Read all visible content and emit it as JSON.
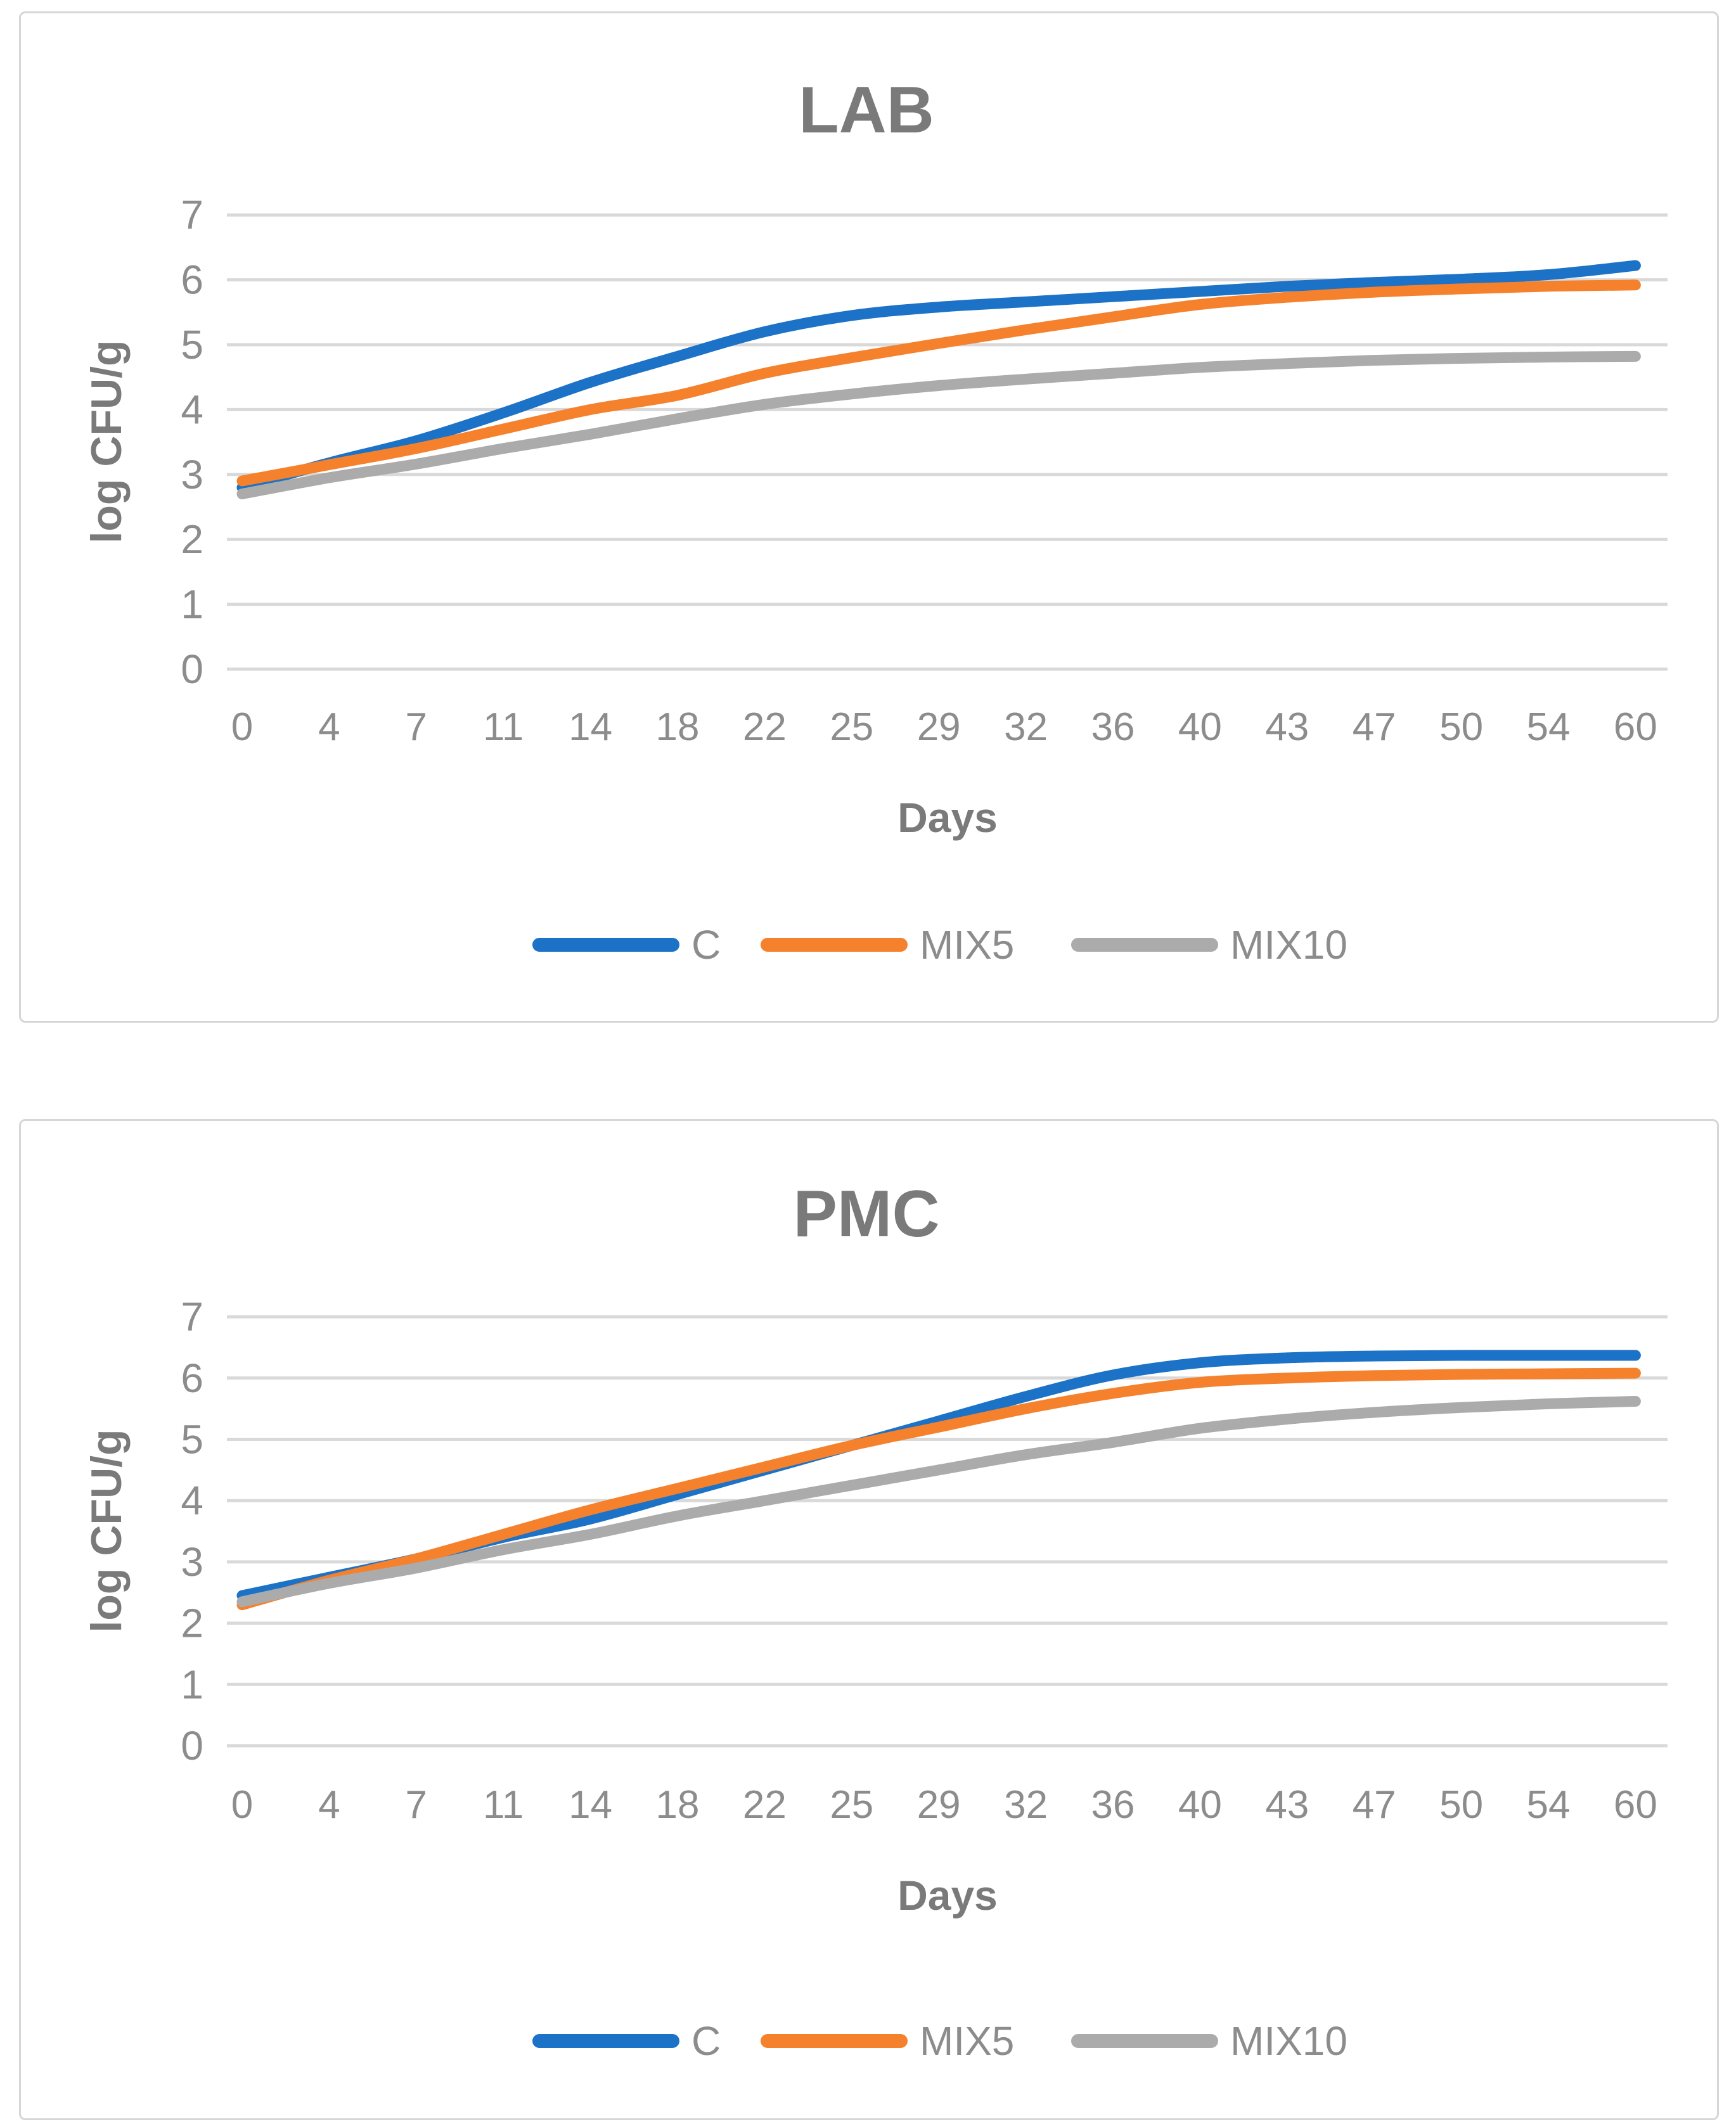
{
  "colors": {
    "series_blue": "#1b72c6",
    "series_orange": "#f5812d",
    "series_gray": "#ababab",
    "gridline": "#d9d9d9",
    "tick_text": "#8c8c8c",
    "title_text": "#7a7a7a"
  },
  "chart_data": [
    {
      "type": "line",
      "title": "LAB",
      "xlabel": "Days",
      "ylabel": "log CFU/g",
      "ylim": [
        0,
        7
      ],
      "yticks": [
        0,
        1,
        2,
        3,
        4,
        5,
        6,
        7
      ],
      "grid": true,
      "legend_position": "bottom",
      "line_style": "smooth",
      "categories": [
        "0",
        "4",
        "7",
        "11",
        "14",
        "18",
        "22",
        "25",
        "29",
        "32",
        "36",
        "40",
        "43",
        "47",
        "50",
        "54",
        "60"
      ],
      "series": [
        {
          "name": "C",
          "color": "#1b72c6",
          "values": [
            2.8,
            3.18,
            3.52,
            3.95,
            4.42,
            4.82,
            5.2,
            5.45,
            5.58,
            5.66,
            5.74,
            5.82,
            5.9,
            5.96,
            6.01,
            6.08,
            6.22
          ]
        },
        {
          "name": "MIX5",
          "color": "#f5812d",
          "values": [
            2.9,
            3.15,
            3.4,
            3.7,
            4.0,
            4.22,
            4.56,
            4.8,
            5.02,
            5.23,
            5.43,
            5.62,
            5.73,
            5.81,
            5.86,
            5.9,
            5.92
          ]
        },
        {
          "name": "MIX10",
          "color": "#ababab",
          "values": [
            2.7,
            2.95,
            3.16,
            3.4,
            3.62,
            3.86,
            4.08,
            4.24,
            4.37,
            4.47,
            4.56,
            4.65,
            4.71,
            4.76,
            4.79,
            4.81,
            4.82
          ]
        }
      ]
    },
    {
      "type": "line",
      "title": "PMC",
      "xlabel": "Days",
      "ylabel": "log CFU/g",
      "ylim": [
        0,
        7
      ],
      "yticks": [
        0,
        1,
        2,
        3,
        4,
        5,
        6,
        7
      ],
      "grid": true,
      "legend_position": "bottom",
      "line_style": "smooth",
      "categories": [
        "0",
        "4",
        "7",
        "11",
        "14",
        "18",
        "22",
        "25",
        "29",
        "32",
        "36",
        "40",
        "43",
        "47",
        "50",
        "54",
        "60"
      ],
      "series": [
        {
          "name": "C",
          "color": "#1b72c6",
          "values": [
            2.45,
            2.75,
            3.05,
            3.4,
            3.7,
            4.1,
            4.5,
            4.9,
            5.3,
            5.7,
            6.05,
            6.25,
            6.33,
            6.36,
            6.37,
            6.37,
            6.37
          ]
        },
        {
          "name": "MIX5",
          "color": "#f5812d",
          "values": [
            2.3,
            2.7,
            3.05,
            3.45,
            3.85,
            4.2,
            4.55,
            4.9,
            5.2,
            5.5,
            5.75,
            5.93,
            6.0,
            6.04,
            6.06,
            6.07,
            6.08
          ]
        },
        {
          "name": "MIX10",
          "color": "#ababab",
          "values": [
            2.35,
            2.65,
            2.9,
            3.2,
            3.45,
            3.75,
            4.0,
            4.25,
            4.5,
            4.75,
            4.95,
            5.18,
            5.33,
            5.44,
            5.52,
            5.58,
            5.62
          ]
        }
      ]
    }
  ]
}
